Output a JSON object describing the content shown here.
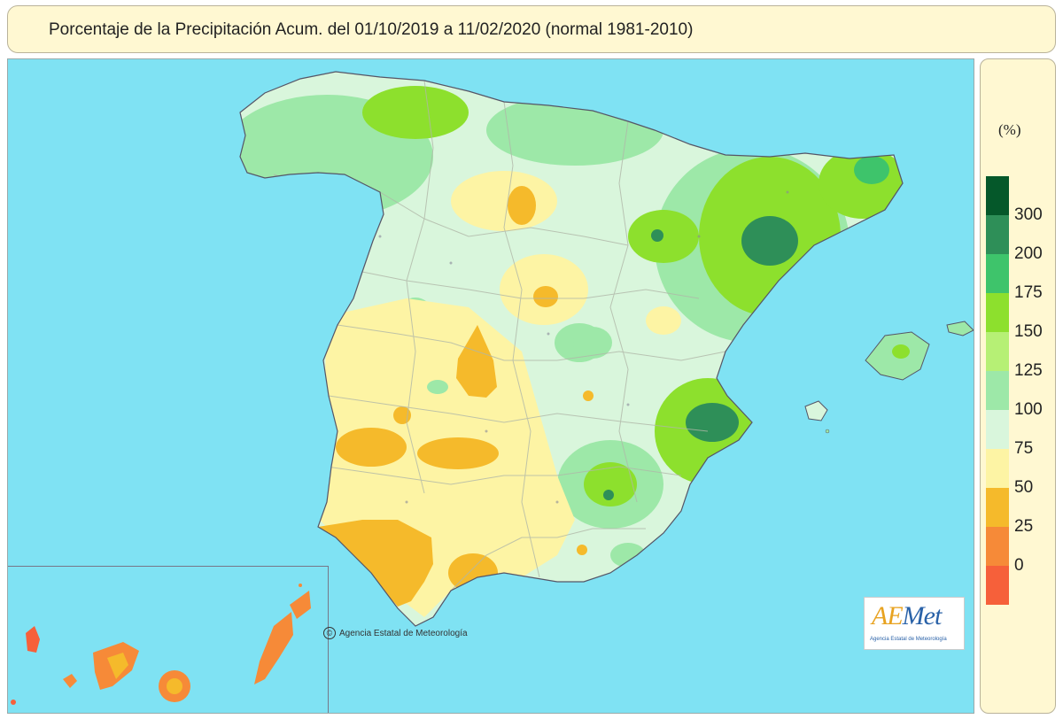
{
  "title": "Porcentaje de la Precipitación Acum. del 01/10/2019 a  11/02/2020  (normal 1981-2010)",
  "legend": {
    "unit": "(%)",
    "classes": [
      {
        "label": "300",
        "color": "#05582a"
      },
      {
        "label": "200",
        "color": "#2e8f58"
      },
      {
        "label": "175",
        "color": "#3ec46b"
      },
      {
        "label": "150",
        "color": "#8de02d"
      },
      {
        "label": "125",
        "color": "#b6f075"
      },
      {
        "label": "100",
        "color": "#9de8a8"
      },
      {
        "label": "75",
        "color": "#d9f6dc"
      },
      {
        "label": "50",
        "color": "#fdf4a4"
      },
      {
        "label": "25",
        "color": "#f5ba2b"
      },
      {
        "label": "0",
        "color": "#f68a38"
      },
      {
        "label": "",
        "color": "#f6603a"
      }
    ]
  },
  "map": {
    "sea_color": "#7fe2f3",
    "base_land_color": "#d9f6dc",
    "region": "Spain (Peninsula, Balearic Islands, Canary Islands)"
  },
  "copyright": "Agencia Estatal de Meteorología",
  "logo": {
    "text_main": "Met",
    "text_accent": "AE",
    "sub": "Agencia Estatal de Meteorología"
  }
}
